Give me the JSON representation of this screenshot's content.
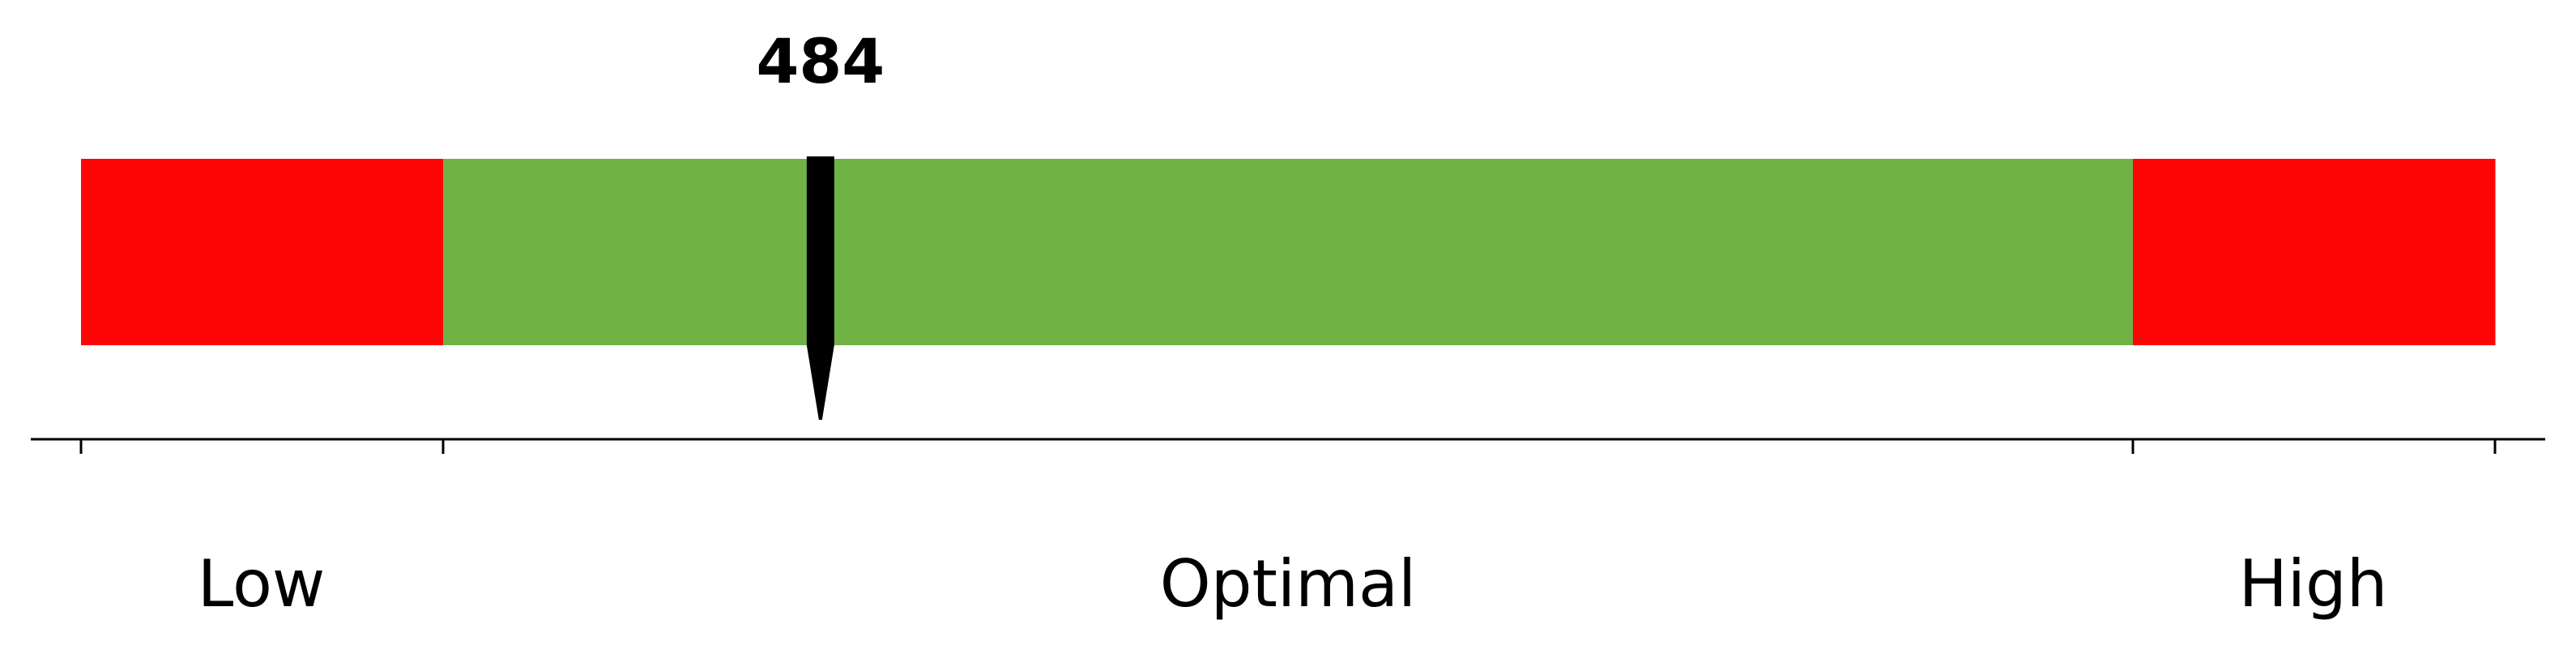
{
  "chart_data": {
    "type": "bar",
    "value": 484,
    "value_label": "484",
    "xlim": [
      0,
      1580
    ],
    "segments": [
      {
        "start": 0,
        "end": 237,
        "color": "#ff0606"
      },
      {
        "start": 237,
        "end": 1343,
        "color": "#71b246"
      },
      {
        "start": 1343,
        "end": 1580,
        "color": "#ff0606"
      }
    ],
    "ticks": [
      0,
      237,
      1343,
      1580
    ],
    "zone_labels": [
      {
        "text": "Low",
        "position": 118
      },
      {
        "text": "Optimal",
        "position": 790
      },
      {
        "text": "High",
        "position": 1461
      }
    ],
    "pointer_color": "#000000",
    "axis_color": "#000000"
  }
}
